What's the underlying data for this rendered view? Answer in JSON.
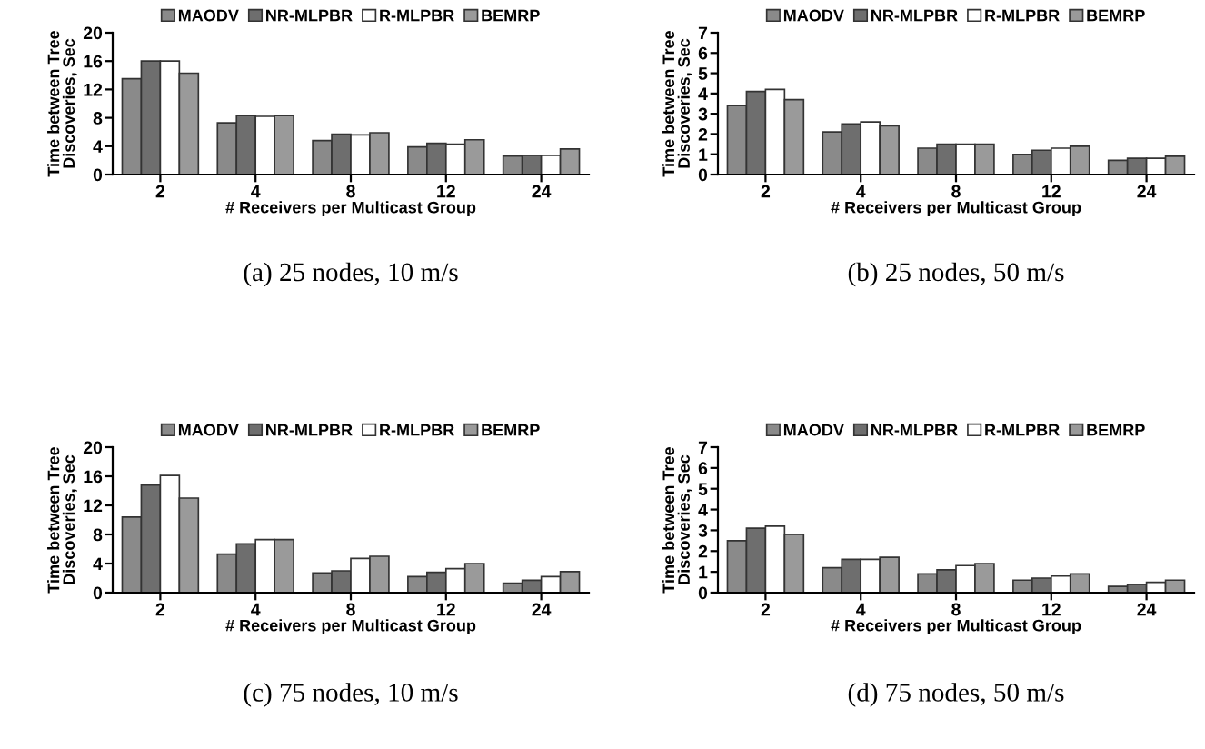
{
  "chart_data": [
    {
      "type": "bar",
      "title": "(a) 25 nodes, 10 m/s",
      "xlabel": "# Receivers per Multicast Group",
      "ylabel": "Time between Tree Discoveries, Sec",
      "categories": [
        "2",
        "4",
        "8",
        "12",
        "24"
      ],
      "ylim": [
        0,
        20
      ],
      "yticks": [
        0,
        4,
        8,
        12,
        16,
        20
      ],
      "legend": "top",
      "grid": false,
      "series": [
        {
          "name": "MAODV",
          "color": "#8a8a8a",
          "values": [
            13.5,
            7.3,
            4.8,
            3.9,
            2.6
          ]
        },
        {
          "name": "NR-MLPBR",
          "color": "#6e6e6e",
          "values": [
            16,
            8.3,
            5.7,
            4.4,
            2.7
          ]
        },
        {
          "name": "R-MLPBR",
          "color": "#ffffff",
          "values": [
            16,
            8.2,
            5.6,
            4.3,
            2.7
          ]
        },
        {
          "name": "BEMRP",
          "color": "#9a9a9a",
          "values": [
            14.3,
            8.3,
            5.9,
            4.9,
            3.6
          ]
        }
      ]
    },
    {
      "type": "bar",
      "title": "(b) 25 nodes, 50 m/s",
      "xlabel": "# Receivers per Multicast Group",
      "ylabel": "Time between Tree Discoveries, Sec",
      "categories": [
        "2",
        "4",
        "8",
        "12",
        "24"
      ],
      "ylim": [
        0,
        7
      ],
      "yticks": [
        0,
        1,
        2,
        3,
        4,
        5,
        6,
        7
      ],
      "legend": "top",
      "grid": false,
      "series": [
        {
          "name": "MAODV",
          "color": "#8a8a8a",
          "values": [
            3.4,
            2.1,
            1.3,
            1.0,
            0.7
          ]
        },
        {
          "name": "NR-MLPBR",
          "color": "#6e6e6e",
          "values": [
            4.1,
            2.5,
            1.5,
            1.2,
            0.8
          ]
        },
        {
          "name": "R-MLPBR",
          "color": "#ffffff",
          "values": [
            4.2,
            2.6,
            1.5,
            1.3,
            0.8
          ]
        },
        {
          "name": "BEMRP",
          "color": "#9a9a9a",
          "values": [
            3.7,
            2.4,
            1.5,
            1.4,
            0.9
          ]
        }
      ]
    },
    {
      "type": "bar",
      "title": "(c) 75 nodes, 10 m/s",
      "xlabel": "# Receivers per Multicast Group",
      "ylabel": "Time between Tree Discoveries, Sec",
      "categories": [
        "2",
        "4",
        "8",
        "12",
        "24"
      ],
      "ylim": [
        0,
        20
      ],
      "yticks": [
        0,
        4,
        8,
        12,
        16,
        20
      ],
      "legend": "top",
      "grid": false,
      "series": [
        {
          "name": "MAODV",
          "color": "#8a8a8a",
          "values": [
            10.4,
            5.3,
            2.7,
            2.2,
            1.3
          ]
        },
        {
          "name": "NR-MLPBR",
          "color": "#6e6e6e",
          "values": [
            14.8,
            6.7,
            3.0,
            2.8,
            1.7
          ]
        },
        {
          "name": "R-MLPBR",
          "color": "#ffffff",
          "values": [
            16.1,
            7.3,
            4.7,
            3.3,
            2.2
          ]
        },
        {
          "name": "BEMRP",
          "color": "#9a9a9a",
          "values": [
            13,
            7.3,
            5.0,
            4.0,
            2.9
          ]
        }
      ]
    },
    {
      "type": "bar",
      "title": "(d) 75 nodes, 50 m/s",
      "xlabel": "# Receivers per Multicast Group",
      "ylabel": "Time between Tree Discoveries, Sec",
      "categories": [
        "2",
        "4",
        "8",
        "12",
        "24"
      ],
      "ylim": [
        0,
        7
      ],
      "yticks": [
        0,
        1,
        2,
        3,
        4,
        5,
        6,
        7
      ],
      "legend": "top",
      "grid": false,
      "series": [
        {
          "name": "MAODV",
          "color": "#8a8a8a",
          "values": [
            2.5,
            1.2,
            0.9,
            0.6,
            0.3
          ]
        },
        {
          "name": "NR-MLPBR",
          "color": "#6e6e6e",
          "values": [
            3.1,
            1.6,
            1.1,
            0.7,
            0.4
          ]
        },
        {
          "name": "R-MLPBR",
          "color": "#ffffff",
          "values": [
            3.2,
            1.6,
            1.3,
            0.8,
            0.5
          ]
        },
        {
          "name": "BEMRP",
          "color": "#9a9a9a",
          "values": [
            2.8,
            1.7,
            1.4,
            0.9,
            0.6
          ]
        }
      ]
    }
  ]
}
